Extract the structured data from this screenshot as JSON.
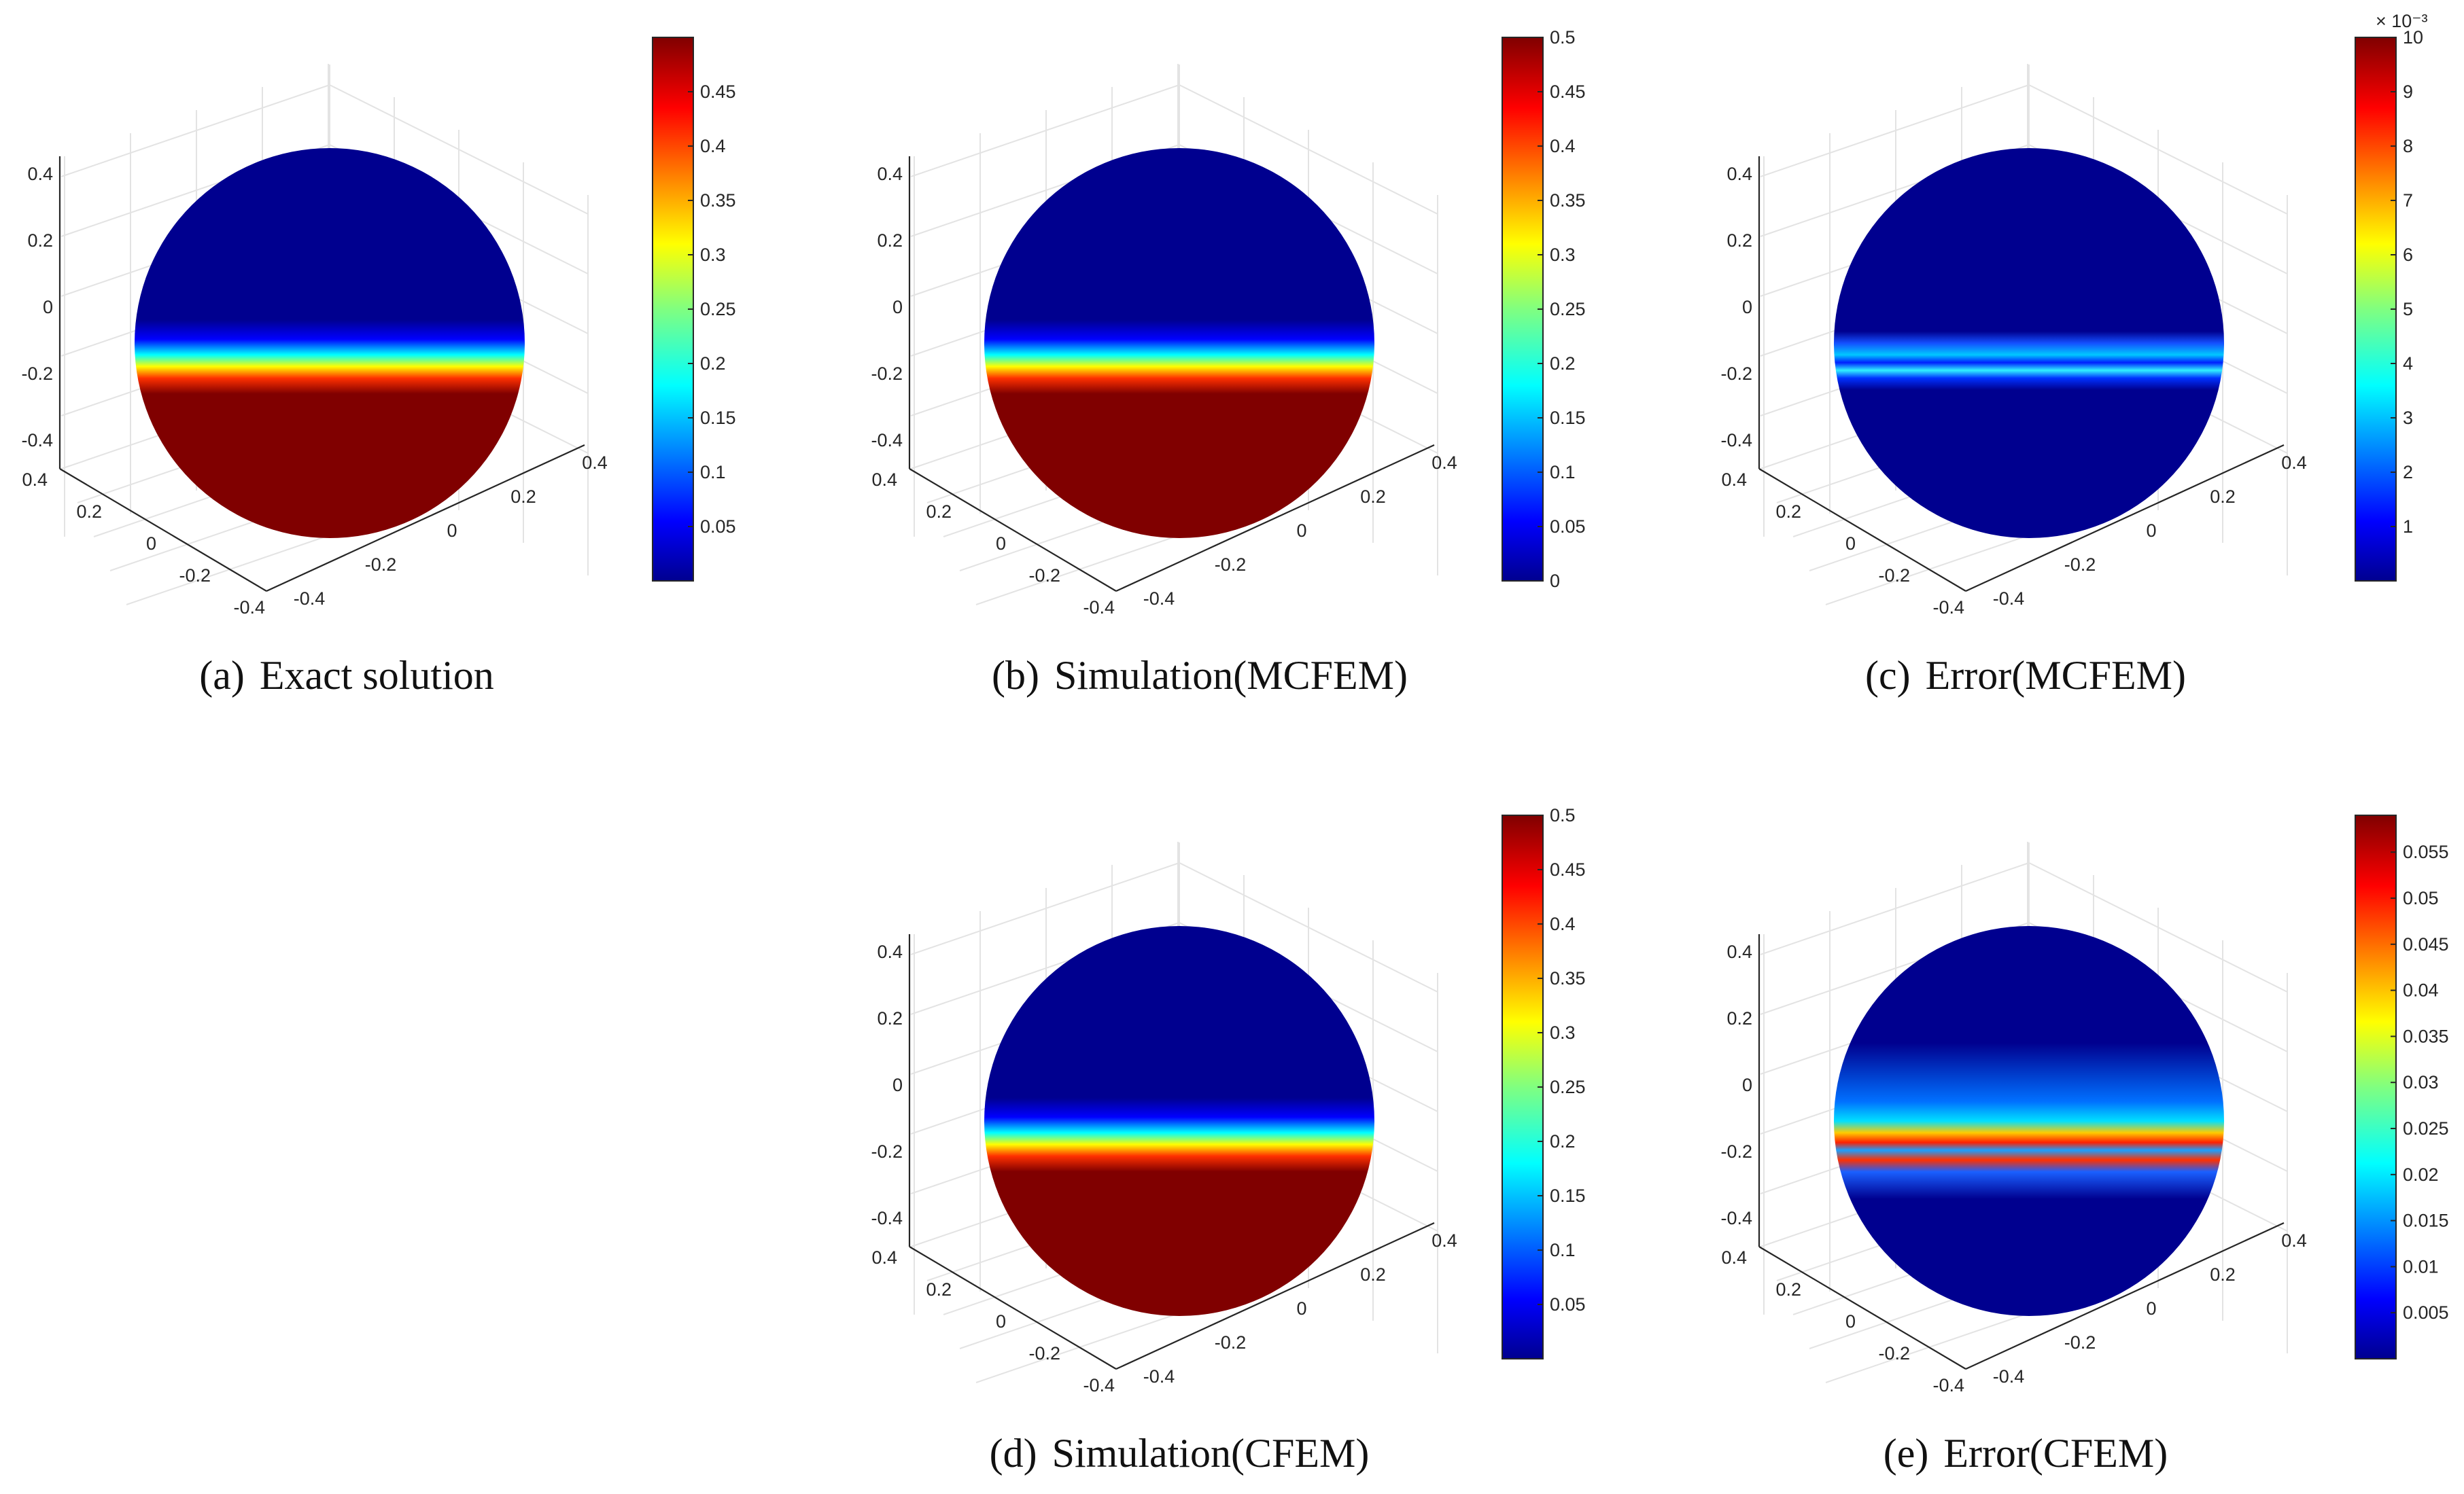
{
  "figure": {
    "panels": [
      {
        "id": "a",
        "caption_label": "(a)",
        "caption_text": "Exact solution",
        "sphere_type": "solution",
        "z_ticks": [
          "0.4",
          "0.2",
          "0",
          "-0.2",
          "-0.4"
        ],
        "y_ticks": [
          "0.4",
          "0.2",
          "0",
          "-0.2",
          "-0.4"
        ],
        "x_ticks": [
          "-0.4",
          "-0.2",
          "0",
          "0.2",
          "0.4"
        ],
        "colorbar": {
          "ticks": [
            "0.45",
            "0.4",
            "0.35",
            "0.3",
            "0.25",
            "0.2",
            "0.15",
            "0.1",
            "0.05"
          ],
          "min": 0.0,
          "max": 0.5,
          "exponent": ""
        }
      },
      {
        "id": "b",
        "caption_label": "(b)",
        "caption_text": "Simulation(MCFEM)",
        "sphere_type": "solution",
        "z_ticks": [
          "0.4",
          "0.2",
          "0",
          "-0.2",
          "-0.4"
        ],
        "y_ticks": [
          "0.4",
          "0.2",
          "0",
          "-0.2",
          "-0.4"
        ],
        "x_ticks": [
          "-0.4",
          "-0.2",
          "0",
          "0.2",
          "0.4"
        ],
        "colorbar": {
          "ticks": [
            "0.5",
            "0.45",
            "0.4",
            "0.35",
            "0.3",
            "0.25",
            "0.2",
            "0.15",
            "0.1",
            "0.05",
            "0"
          ],
          "min": 0.0,
          "max": 0.5,
          "exponent": ""
        }
      },
      {
        "id": "c",
        "caption_label": "(c)",
        "caption_text": "Error(MCFEM)",
        "sphere_type": "error-thin",
        "z_ticks": [
          "0.4",
          "0.2",
          "0",
          "-0.2",
          "-0.4"
        ],
        "y_ticks": [
          "0.4",
          "0.2",
          "0",
          "-0.2",
          "-0.4"
        ],
        "x_ticks": [
          "-0.4",
          "-0.2",
          "0",
          "0.2",
          "0.4"
        ],
        "colorbar": {
          "ticks": [
            "10",
            "9",
            "8",
            "7",
            "6",
            "5",
            "4",
            "3",
            "2",
            "1"
          ],
          "min": 0.0,
          "max": 10.0,
          "exponent": "× 10⁻³"
        }
      },
      {
        "id": "d",
        "caption_label": "(d)",
        "caption_text": "Simulation(CFEM)",
        "sphere_type": "solution",
        "z_ticks": [
          "0.4",
          "0.2",
          "0",
          "-0.2",
          "-0.4"
        ],
        "y_ticks": [
          "0.4",
          "0.2",
          "0",
          "-0.2",
          "-0.4"
        ],
        "x_ticks": [
          "-0.4",
          "-0.2",
          "0",
          "0.2",
          "0.4"
        ],
        "colorbar": {
          "ticks": [
            "0.5",
            "0.45",
            "0.4",
            "0.35",
            "0.3",
            "0.25",
            "0.2",
            "0.15",
            "0.1",
            "0.05"
          ],
          "min": 0.0,
          "max": 0.5,
          "exponent": ""
        }
      },
      {
        "id": "e",
        "caption_label": "(e)",
        "caption_text": "Error(CFEM)",
        "sphere_type": "error-wide",
        "z_ticks": [
          "0.4",
          "0.2",
          "0",
          "-0.2",
          "-0.4"
        ],
        "y_ticks": [
          "0.4",
          "0.2",
          "0",
          "-0.2",
          "-0.4"
        ],
        "x_ticks": [
          "-0.4",
          "-0.2",
          "0",
          "0.2",
          "0.4"
        ],
        "colorbar": {
          "ticks": [
            "0.055",
            "0.05",
            "0.045",
            "0.04",
            "0.035",
            "0.03",
            "0.025",
            "0.02",
            "0.015",
            "0.01",
            "0.005"
          ],
          "min": 0.0,
          "max": 0.059,
          "exponent": ""
        }
      }
    ],
    "colormap": "jet",
    "colors": {
      "jet_dark_blue": "#00008f",
      "jet_dark_red": "#800000"
    }
  }
}
